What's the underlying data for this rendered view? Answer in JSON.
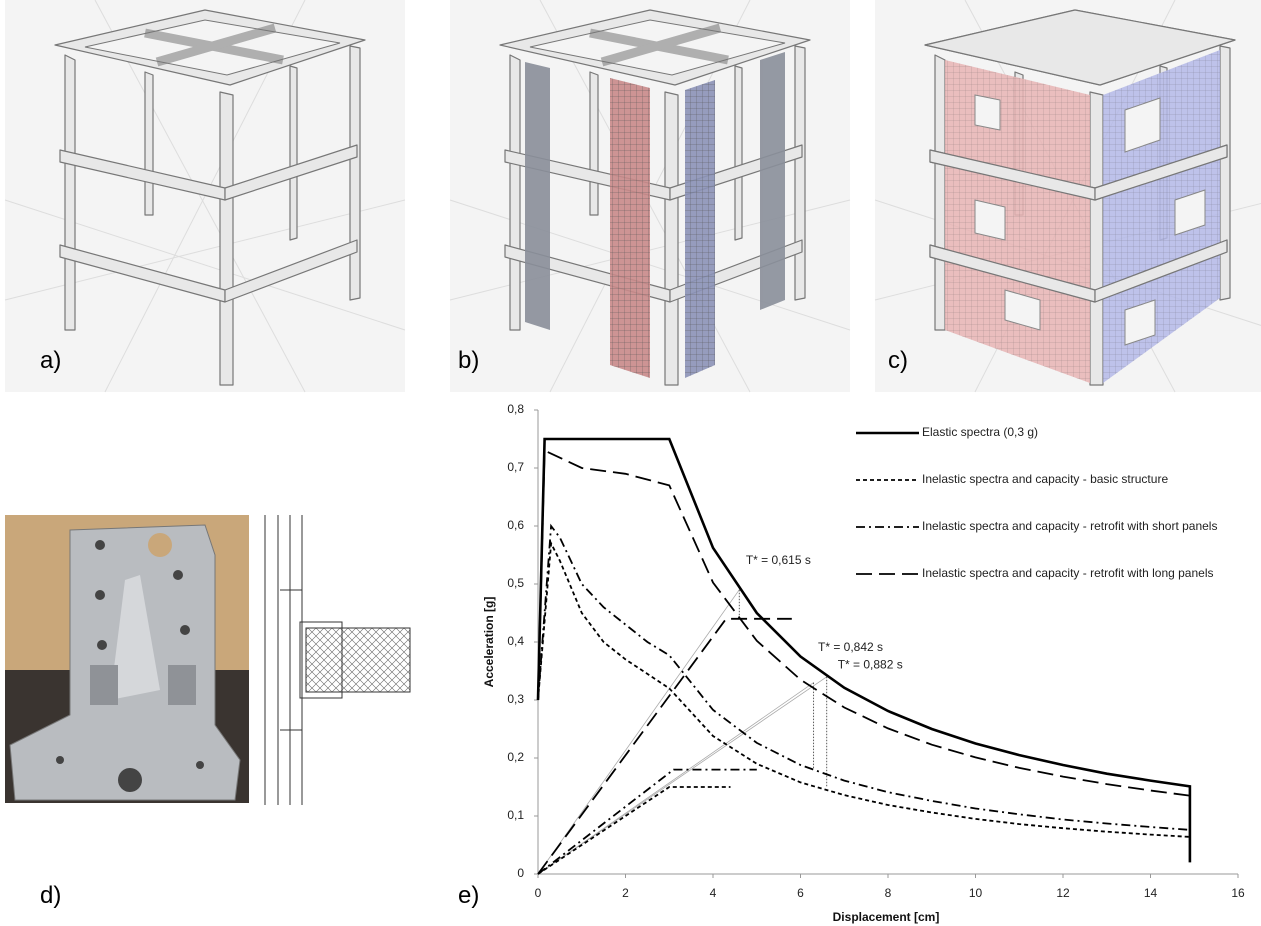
{
  "panel_labels": [
    "a)",
    "b)",
    "c)",
    "d)",
    "e)"
  ],
  "chart_data": {
    "type": "line",
    "xlabel": "Displacement [cm]",
    "ylabel": "Acceleration [g]",
    "xlim": [
      0,
      16
    ],
    "xticks": [
      0,
      2,
      4,
      6,
      8,
      10,
      12,
      14,
      16
    ],
    "ylim": [
      0,
      0.8
    ],
    "yticks": [
      0,
      {
        "value": 0.1,
        "label": "0,1"
      },
      {
        "value": 0.2,
        "label": "0,2"
      },
      {
        "value": 0.3,
        "label": "0,3"
      },
      {
        "value": 0.4,
        "label": "0,4"
      },
      {
        "value": 0.5,
        "label": "0,5"
      },
      {
        "value": 0.6,
        "label": "0,6"
      },
      {
        "value": 0.7,
        "label": "0,7"
      },
      {
        "value": 0.8,
        "label": "0,8"
      }
    ],
    "series": [
      {
        "name": "Elastic spectra (0,3 g)",
        "color": "#000000",
        "dash": "solid",
        "x": [
          0,
          0.15,
          3,
          4,
          5,
          6,
          7,
          8,
          9,
          10,
          11,
          12,
          13,
          14,
          14.9,
          14.9
        ],
        "values": [
          0.3,
          0.75,
          0.75,
          0.5625,
          0.45,
          0.375,
          0.321,
          0.281,
          0.25,
          0.225,
          0.205,
          0.188,
          0.173,
          0.161,
          0.151,
          0.02
        ]
      },
      {
        "name": "Inelastic spectra and capacity - basic structure",
        "color": "#000000",
        "dash": "short",
        "x": [
          0,
          0.3,
          0.5,
          1,
          1.5,
          2,
          2.5,
          3,
          4,
          5,
          6,
          7,
          8,
          9,
          10,
          11,
          12,
          13,
          14,
          14.9,
          null,
          0,
          3,
          4.4
        ],
        "values": [
          0.3,
          0.57,
          0.54,
          0.45,
          0.4,
          0.37,
          0.345,
          0.32,
          0.238,
          0.19,
          0.158,
          0.136,
          0.119,
          0.106,
          0.095,
          0.086,
          0.079,
          0.073,
          0.068,
          0.064,
          null,
          0,
          0.15,
          0.15
        ]
      },
      {
        "name": "Inelastic spectra and capacity - retrofit with short panels",
        "color": "#000000",
        "dash": "dashdot",
        "x": [
          0,
          0.3,
          0.5,
          1,
          1.5,
          2,
          2.5,
          3,
          4,
          5,
          6,
          7,
          8,
          9,
          10,
          11,
          12,
          13,
          14,
          14.9,
          null,
          0,
          3.1,
          5
        ],
        "values": [
          0.3,
          0.6,
          0.58,
          0.5,
          0.46,
          0.43,
          0.4,
          0.377,
          0.283,
          0.226,
          0.188,
          0.161,
          0.141,
          0.126,
          0.113,
          0.103,
          0.094,
          0.087,
          0.081,
          0.076,
          null,
          0,
          0.18,
          0.18
        ]
      },
      {
        "name": "Inelastic spectra and capacity - retrofit with long panels",
        "color": "#000000",
        "dash": "long",
        "x": [
          0,
          0.15,
          1,
          2,
          3,
          4,
          5,
          6,
          7,
          8,
          9,
          10,
          11,
          12,
          13,
          14,
          14.9,
          null,
          0,
          4.3,
          5.8
        ],
        "values": [
          0.3,
          0.73,
          0.7,
          0.69,
          0.67,
          0.5025,
          0.402,
          0.335,
          0.287,
          0.251,
          0.223,
          0.201,
          0.183,
          0.168,
          0.155,
          0.144,
          0.135,
          null,
          0,
          0.44,
          0.44
        ]
      }
    ],
    "period_lines": [
      {
        "label": "T* = 0,615 s",
        "x": 4.6,
        "y": 0.49,
        "y_low": 0.44
      },
      {
        "label": "T* = 0,842 s",
        "x": 6.3,
        "y": 0.33,
        "y_low": 0.18
      },
      {
        "label": "T* = 0,882 s",
        "x": 6.6,
        "y": 0.34,
        "y_low": 0.15
      }
    ],
    "legend": "upper right"
  }
}
